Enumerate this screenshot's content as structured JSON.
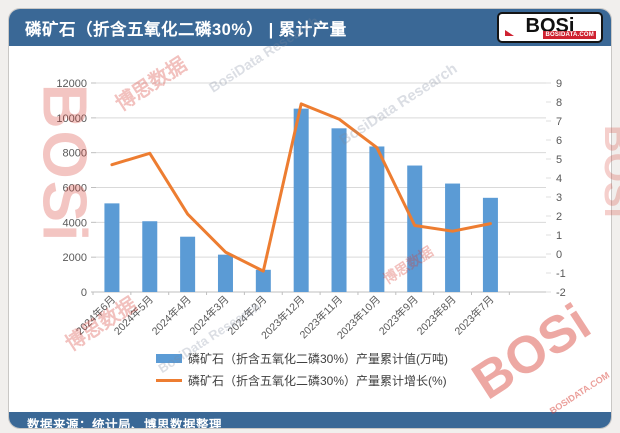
{
  "header": {
    "title": "磷矿石（折含五氧化二磷30%） | 累计产量",
    "logo": {
      "text": "BOSi",
      "site": "BOSIDATA.COM"
    }
  },
  "footer": {
    "source": "数据来源：统计局、博思数据整理"
  },
  "watermarks": {
    "brand": "BOSi",
    "brand_cn": "博思数据",
    "research": "BosiData Research",
    "site": "BOSIDATA.COM"
  },
  "colors": {
    "header_blue": "#3a6896",
    "bar_blue": "#5b9bd5",
    "line_orange": "#ed7d31",
    "axis_text": "#595959",
    "gridline": "#d9d9d9"
  },
  "chart_data": {
    "type": "bar",
    "subtype": "bar+line dual axis",
    "categories": [
      "2024年6月",
      "2024年5月",
      "2024年4月",
      "2024年3月",
      "2024年2月",
      "2023年12月",
      "2023年11月",
      "2023年10月",
      "2023年9月",
      "2023年8月",
      "2023年7月"
    ],
    "series": [
      {
        "name": "磷矿石（折含五氧化二磷30%）产量累计值(万吨)",
        "type": "bar",
        "axis": "left",
        "color": "#5b9bd5",
        "values": [
          5089,
          4063,
          3175,
          2144,
          1275,
          10527,
          9398,
          8356,
          7261,
          6227,
          5408
        ]
      },
      {
        "name": "磷矿石（折含五氧化二磷30%）产量累计增长(%)",
        "type": "line",
        "axis": "right",
        "color": "#ed7d31",
        "values": [
          4.7,
          5.3,
          2.1,
          0.1,
          -0.9,
          7.9,
          7.1,
          5.6,
          1.5,
          1.2,
          1.6
        ]
      }
    ],
    "left_axis": {
      "min": 0,
      "max": 12000,
      "step": 2000,
      "ticks": [
        0,
        2000,
        4000,
        6000,
        8000,
        10000,
        12000
      ]
    },
    "right_axis": {
      "min": -2,
      "max": 9,
      "step": 1,
      "ticks": [
        -2,
        -1,
        0,
        1,
        2,
        3,
        4,
        5,
        6,
        7,
        8,
        9
      ]
    },
    "grid": true,
    "legend_position": "bottom"
  }
}
